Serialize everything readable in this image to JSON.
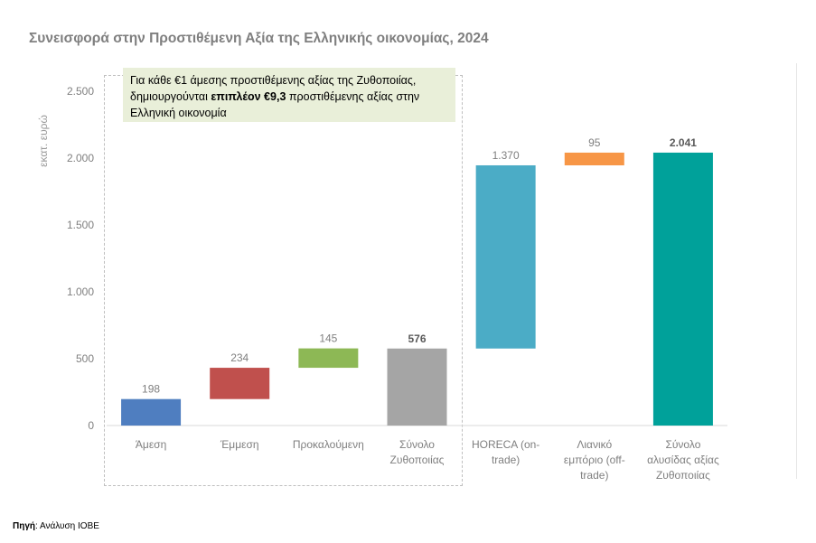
{
  "chart_data": {
    "type": "bar",
    "subtype": "waterfall",
    "title": "Συνεισφορά στην Προστιθέμενη Αξία της Ελληνικής οικονομίας, 2024",
    "ylabel": "εκατ. ευρώ",
    "xlabel": "",
    "ylim": [
      0,
      2500
    ],
    "yticks": [
      0,
      500,
      1000,
      1500,
      2000,
      2500
    ],
    "ytick_labels": [
      "0",
      "500",
      "1.000",
      "1.500",
      "2.000",
      "2.500"
    ],
    "bars": [
      {
        "label": [
          "Άμεση"
        ],
        "value": 198,
        "base": 0,
        "value_label": "198",
        "color": "#4f7ec0",
        "bold": false
      },
      {
        "label": [
          "Έμμεση"
        ],
        "value": 234,
        "base": 198,
        "value_label": "234",
        "color": "#c0504d",
        "bold": false
      },
      {
        "label": [
          "Προκαλούμενη"
        ],
        "value": 145,
        "base": 432,
        "value_label": "145",
        "color": "#8db855",
        "bold": false
      },
      {
        "label": [
          "Σύνολο",
          "Ζυθοποιίας"
        ],
        "value": 576,
        "base": 0,
        "value_label": "576",
        "color": "#a5a5a5",
        "bold": true
      },
      {
        "label": [
          "HORECA (on-",
          "trade)"
        ],
        "value": 1370,
        "base": 576,
        "value_label": "1.370",
        "color": "#4bacc6",
        "bold": false
      },
      {
        "label": [
          "Λιανικό",
          "εμπόριο (off-",
          "trade)"
        ],
        "value": 95,
        "base": 1946,
        "value_label": "95",
        "color": "#f79646",
        "bold": false
      },
      {
        "label": [
          "Σύνολο",
          "αλυσίδας αξίας",
          "Ζυθοποιίας"
        ],
        "value": 2041,
        "base": 0,
        "value_label": "2.041",
        "color": "#00a19a",
        "bold": true
      }
    ]
  },
  "note": {
    "pre": "Για κάθε €1 άμεσης προστιθέμενης αξίας της Ζυθοποιίας, δημιουργούνται ",
    "bold": "επιπλέον €9,3",
    "post": " προστιθέμενης αξίας στην Ελληνική οικονομία"
  },
  "source": {
    "label": "Πηγή",
    "text": ": Ανάλυση ΙΟΒΕ"
  }
}
